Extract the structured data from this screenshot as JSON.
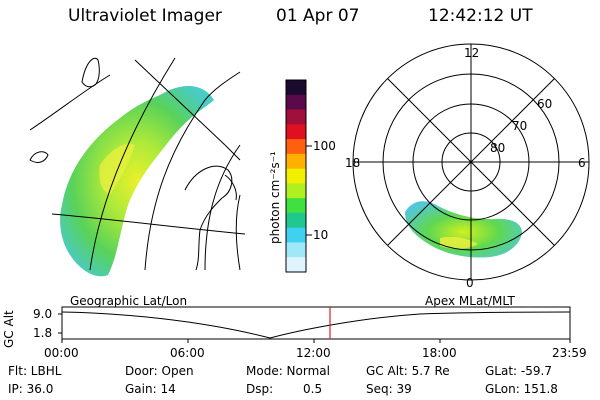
{
  "header": {
    "title": "Ultraviolet Imager",
    "date": "01 Apr 07",
    "time": "12:42:12 UT"
  },
  "colorbar": {
    "unit_label": "photon cm⁻²s⁻¹",
    "ticks": [
      "100",
      "10"
    ],
    "colors": [
      "#1a0a2e",
      "#5a0a4a",
      "#a0103a",
      "#e01020",
      "#ff6010",
      "#ffb000",
      "#f0f000",
      "#b0f020",
      "#40e040",
      "#20c890",
      "#40d0f0",
      "#a0e8f8",
      "#e0f4ff"
    ]
  },
  "left_panel": {
    "caption": "Geographic Lat/Lon"
  },
  "right_panel": {
    "caption": "Apex MLat/MLT",
    "labels": {
      "top": "12",
      "left": "18",
      "right": "6",
      "bottom": "0",
      "lat60": "60",
      "lat70": "70",
      "lat80": "80"
    }
  },
  "altitude_plot": {
    "ylabel": "GC Alt",
    "yticks": [
      "9.0",
      "1.8"
    ],
    "xticks": [
      "00:00",
      "06:00",
      "12:00",
      "18:00",
      "23:59"
    ]
  },
  "info": {
    "flt": "Flt: LBHL",
    "door": "Door: Open",
    "mode": "Mode: Normal",
    "gc_alt": "GC Alt: 5.7 Re",
    "glat": "GLat: -59.7",
    "ip": "IP: 36.0",
    "gain": "Gain: 14",
    "dsp_label": "Dsp:",
    "dsp_value": "0.5",
    "seq": "Seq: 39",
    "glon": "GLon: 151.8"
  }
}
